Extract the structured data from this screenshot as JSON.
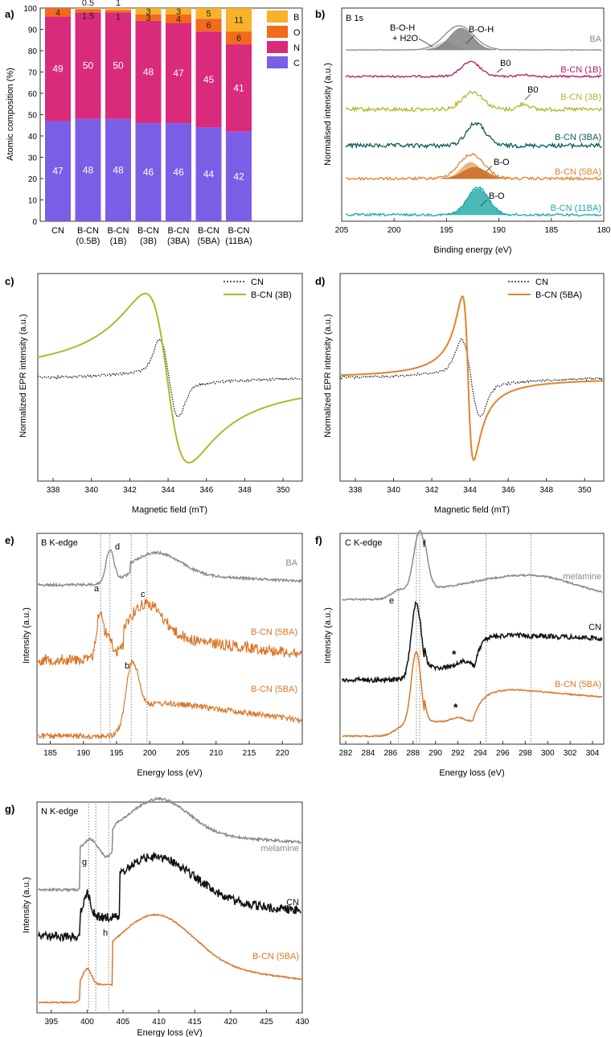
{
  "panel_a": {
    "label": "a)",
    "ylabel": "Atomic composition (%)",
    "legend": [
      "B",
      "O",
      "N",
      "C"
    ],
    "colors": {
      "B": "#f7b12a",
      "O": "#f26a1b",
      "N": "#d92a7b",
      "C": "#7b5ee6"
    }
  },
  "panel_b": {
    "label": "b)",
    "title": "B 1s",
    "peak_labels": [
      "B-O-H",
      "+ H2O",
      "B-O-H",
      "B0",
      "B0",
      "B-O",
      "B-O"
    ],
    "series_labels": [
      "BA",
      "B-CN (1B)",
      "B-CN (3B)",
      "B-CN (3BA)",
      "B-CN (5BA)",
      "B-CN (11BA)"
    ],
    "colors": [
      "#8a8a8a",
      "#b0185e",
      "#b4b62a",
      "#0e5a5a",
      "#e0842a",
      "#1fa8a8"
    ]
  },
  "panel_c": {
    "label": "c)",
    "legend": [
      "CN",
      "B-CN (3B)"
    ],
    "colors": [
      "#222222",
      "#b4b62a"
    ]
  },
  "panel_d": {
    "label": "d)",
    "legend": [
      "CN",
      "B-CN (5BA)"
    ],
    "colors": [
      "#222222",
      "#e0842a"
    ]
  },
  "panel_e": {
    "label": "e)",
    "title": "B K-edge",
    "peak_letters": [
      "d",
      "a",
      "c",
      "b"
    ],
    "series_labels": [
      "BA",
      "B-CN (5BA)",
      "B-CN (5BA)"
    ],
    "colors": [
      "#8a8a8a",
      "#d9782a",
      "#d9782a"
    ]
  },
  "panel_f": {
    "label": "f)",
    "title": "C K-edge",
    "peak_letters": [
      "e",
      "f",
      "*",
      "*"
    ],
    "series_labels": [
      "melamine",
      "CN",
      "B-CN (5BA)"
    ],
    "colors": [
      "#8a8a8a",
      "#111111",
      "#d9782a"
    ]
  },
  "panel_g": {
    "label": "g)",
    "title": "N K-edge",
    "peak_letters": [
      "g",
      "h"
    ],
    "series_labels": [
      "melamine",
      "CN",
      "B-CN (5BA)"
    ],
    "colors": [
      "#8a8a8a",
      "#111111",
      "#d9782a"
    ]
  },
  "chart_data": [
    {
      "panel": "a",
      "type": "bar",
      "stacked": true,
      "categories": [
        "CN",
        "B-CN (0.5B)",
        "B-CN (1B)",
        "B-CN (3B)",
        "B-CN (3BA)",
        "B-CN (5BA)",
        "B-CN (11BA)"
      ],
      "category_lines": [
        [
          "CN"
        ],
        [
          "B-CN",
          "(0.5B)"
        ],
        [
          "B-CN",
          "(1B)"
        ],
        [
          "B-CN",
          "(3B)"
        ],
        [
          "B-CN",
          "(3BA)"
        ],
        [
          "B-CN",
          "(5BA)"
        ],
        [
          "B-CN",
          "(11BA)"
        ]
      ],
      "series": [
        {
          "name": "C",
          "values": [
            47,
            48,
            48,
            46,
            46,
            44,
            42
          ]
        },
        {
          "name": "N",
          "values": [
            49,
            50,
            50,
            48,
            47,
            45,
            41
          ]
        },
        {
          "name": "O",
          "values": [
            4,
            1.5,
            1,
            3,
            4,
            6,
            6
          ]
        },
        {
          "name": "B",
          "values": [
            0,
            0.5,
            1,
            3,
            3,
            5,
            11
          ]
        }
      ],
      "value_labels": {
        "C": [
          "47",
          "48",
          "48",
          "46",
          "46",
          "44",
          "42"
        ],
        "N": [
          "49",
          "50",
          "50",
          "48",
          "47",
          "45",
          "41"
        ],
        "O": [
          "4",
          "1.5",
          "1",
          "3",
          "4",
          "6",
          "6"
        ],
        "B": [
          "",
          "0.5",
          "1",
          "3",
          "3",
          "5",
          "11"
        ]
      },
      "ylabel": "Atomic composition (%)",
      "ylim": [
        0,
        100
      ],
      "yticks": [
        0,
        10,
        20,
        30,
        40,
        50,
        60,
        70,
        80,
        90,
        100
      ]
    },
    {
      "panel": "b",
      "type": "line",
      "title": "B 1s",
      "xlabel": "Binding energy (eV)",
      "ylabel": "Normalised intensity (a.u.)",
      "xlim": [
        205,
        180
      ],
      "xticks": [
        205,
        200,
        195,
        190,
        185,
        180
      ],
      "series": [
        {
          "name": "BA",
          "peak": 193.8,
          "width": 1.4
        },
        {
          "name": "B-CN (1B)",
          "peak": 192.7,
          "width": 0.9
        },
        {
          "name": "B-CN (3B)",
          "peak": 192.5,
          "width": 1.0
        },
        {
          "name": "B-CN (3BA)",
          "peak": 192.2,
          "width": 0.9
        },
        {
          "name": "B-CN (5BA)",
          "peak": 192.6,
          "width": 1.2
        },
        {
          "name": "B-CN (11BA)",
          "peak": 192.0,
          "width": 1.0
        }
      ]
    },
    {
      "panel": "c",
      "type": "line",
      "xlabel": "Magnetic field (mT)",
      "ylabel": "Normalized EPR intensity (a.u.)",
      "xlim": [
        337.2,
        351
      ],
      "xticks": [
        338,
        340,
        342,
        344,
        346,
        348,
        350
      ],
      "series": [
        {
          "name": "CN",
          "center": 344.0
        },
        {
          "name": "B-CN (3B)",
          "center": 343.9
        }
      ]
    },
    {
      "panel": "d",
      "type": "line",
      "xlabel": "Magnetic field (mT)",
      "ylabel": "Normalized EPR intensity (a.u.)",
      "xlim": [
        337.2,
        351
      ],
      "xticks": [
        338,
        340,
        342,
        344,
        346,
        348,
        350
      ],
      "series": [
        {
          "name": "CN",
          "center": 344.0
        },
        {
          "name": "B-CN (5BA)",
          "center": 343.9
        }
      ]
    },
    {
      "panel": "e",
      "type": "line",
      "title": "B K-edge",
      "xlabel": "Energy loss (eV)",
      "ylabel": "Intensity (a.u.)",
      "xlim": [
        183,
        223
      ],
      "xticks": [
        185,
        190,
        195,
        200,
        205,
        210,
        215,
        220
      ],
      "reference_lines": [
        192.6,
        194.0,
        197.2,
        199.6
      ]
    },
    {
      "panel": "f",
      "type": "line",
      "title": "C K-edge",
      "xlabel": "Energy loss (eV)",
      "ylabel": "Intensity (a.u.)",
      "xlim": [
        281.5,
        305
      ],
      "xticks": [
        282,
        284,
        286,
        288,
        290,
        292,
        294,
        296,
        298,
        300,
        302,
        304
      ],
      "reference_lines": [
        286.7,
        288.3,
        288.6,
        294.5,
        298.5
      ]
    },
    {
      "panel": "g",
      "type": "line",
      "title": "N K-edge",
      "xlabel": "Energy loss (eV)",
      "ylabel": "Intensity (a.u.)",
      "xlim": [
        393,
        430
      ],
      "xticks": [
        395,
        400,
        405,
        410,
        415,
        420,
        425,
        430
      ],
      "reference_lines": [
        400.2,
        401.2,
        403.0
      ]
    }
  ]
}
